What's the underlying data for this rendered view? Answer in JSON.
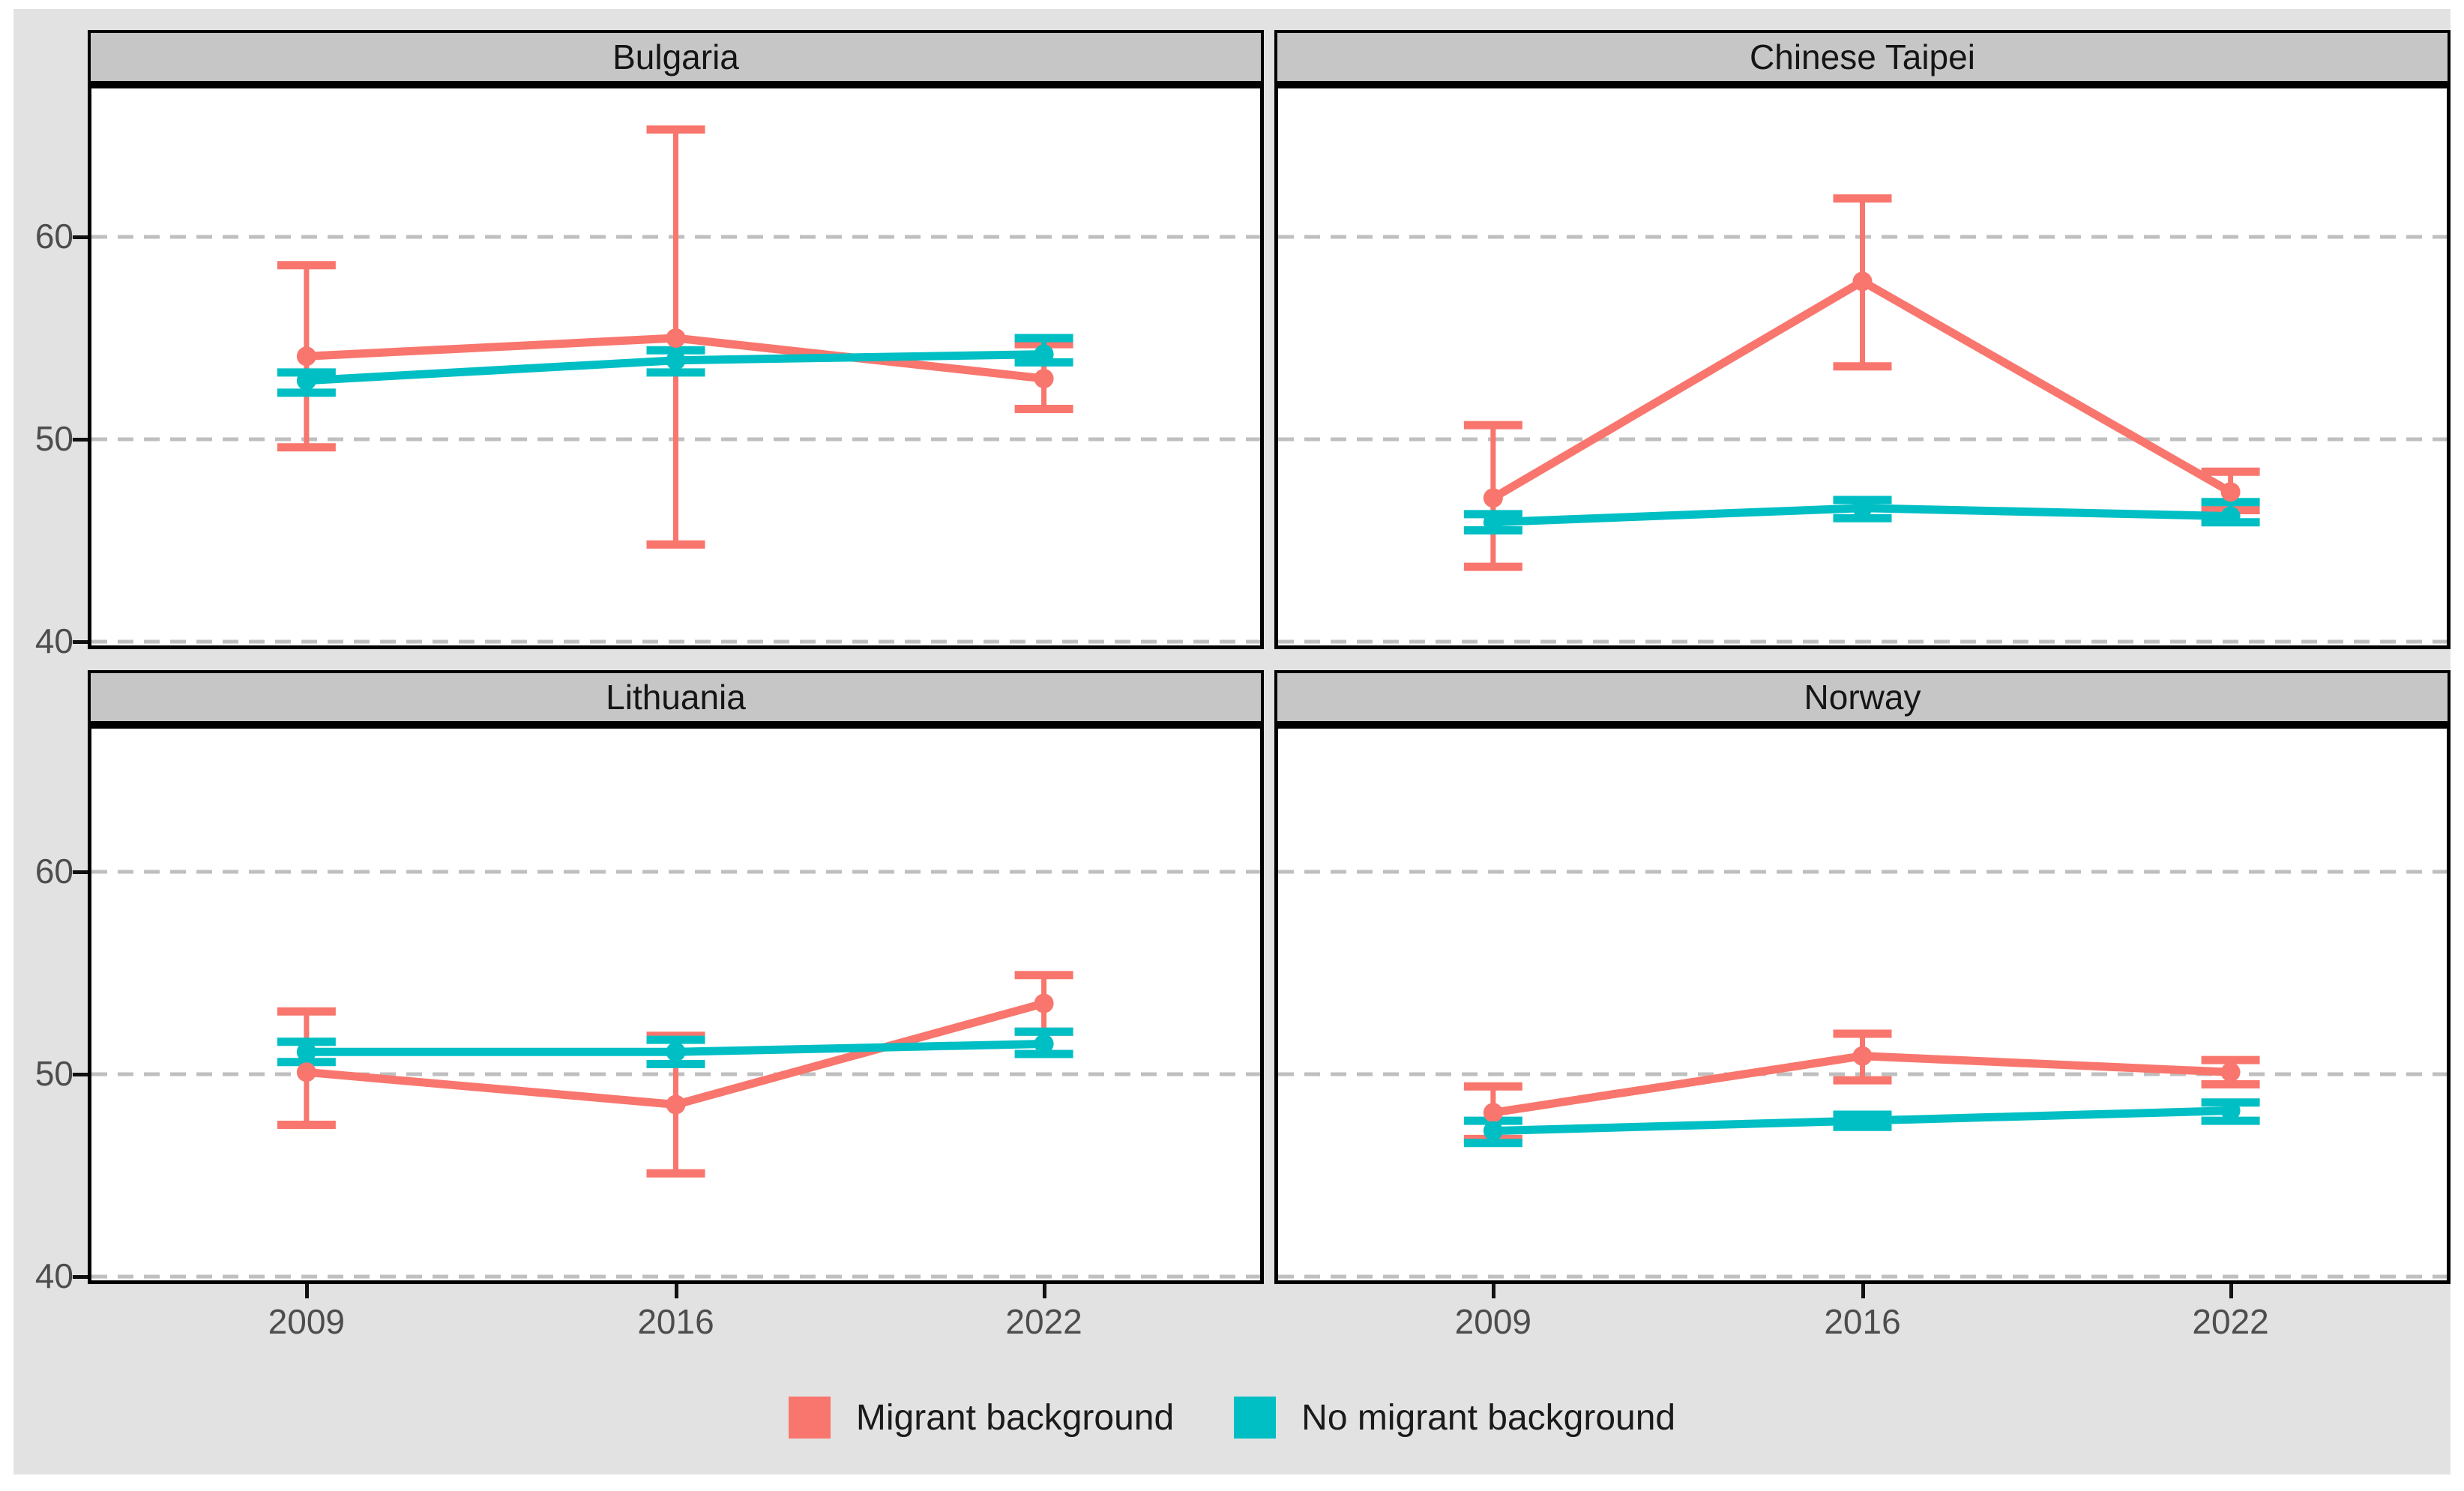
{
  "figure": {
    "outer_background": "#ffffff",
    "canvas_background": "#E2E2E2",
    "panel_background": "#ffffff",
    "strip_background": "#C6C6C6",
    "gridline_color": "#BFBFBF",
    "axis_text_color": "#4D4D4D",
    "strip_text_color": "#151515"
  },
  "legend": {
    "items": [
      {
        "label": "Migrant background",
        "color": "#F8766D"
      },
      {
        "label": "No migrant background",
        "color": "#00BFC4"
      }
    ]
  },
  "chart_data": {
    "type": "line",
    "subtype": "point-range with error bars, faceted 2x2",
    "x": [
      2009,
      2016,
      2022
    ],
    "x_tick_labels": [
      "2009",
      "2016",
      "2022"
    ],
    "yticks": [
      40,
      50,
      60
    ],
    "ytick_labels": [
      "40",
      "50",
      "60"
    ],
    "ylim": [
      39.7,
      67.1
    ],
    "grid": "horizontal dashed at yticks",
    "legend_position": "bottom",
    "series_colors": [
      "#F8766D",
      "#00BFC4"
    ],
    "series_names": [
      "Migrant background",
      "No migrant background"
    ],
    "facets": [
      {
        "title": "Bulgaria",
        "series": [
          {
            "name": "Migrant background",
            "values": [
              54.1,
              55.0,
              53.0
            ],
            "ci_low": [
              49.6,
              44.8,
              51.5
            ],
            "ci_high": [
              58.6,
              65.3,
              54.7
            ]
          },
          {
            "name": "No migrant background",
            "values": [
              52.9,
              53.9,
              54.2
            ],
            "ci_low": [
              52.3,
              53.3,
              53.8
            ],
            "ci_high": [
              53.3,
              54.4,
              55.0
            ]
          }
        ]
      },
      {
        "title": "Chinese Taipei",
        "series": [
          {
            "name": "Migrant background",
            "values": [
              47.1,
              57.8,
              47.4
            ],
            "ci_low": [
              43.7,
              53.6,
              46.5
            ],
            "ci_high": [
              50.7,
              61.9,
              48.4
            ]
          },
          {
            "name": "No migrant background",
            "values": [
              45.9,
              46.6,
              46.2
            ],
            "ci_low": [
              45.5,
              46.1,
              45.9
            ],
            "ci_high": [
              46.3,
              47.0,
              46.9
            ]
          }
        ]
      },
      {
        "title": "Lithuania",
        "series": [
          {
            "name": "Migrant background",
            "values": [
              50.1,
              48.5,
              53.5
            ],
            "ci_low": [
              47.5,
              45.1,
              52.1
            ],
            "ci_high": [
              53.1,
              51.9,
              54.9
            ]
          },
          {
            "name": "No migrant background",
            "values": [
              51.1,
              51.1,
              51.5
            ],
            "ci_low": [
              50.6,
              50.5,
              51.0
            ],
            "ci_high": [
              51.6,
              51.7,
              52.1
            ]
          }
        ]
      },
      {
        "title": "Norway",
        "series": [
          {
            "name": "Migrant background",
            "values": [
              48.1,
              50.9,
              50.1
            ],
            "ci_low": [
              46.8,
              49.7,
              49.5
            ],
            "ci_high": [
              49.4,
              52.0,
              50.7
            ]
          },
          {
            "name": "No migrant background",
            "values": [
              47.2,
              47.7,
              48.2
            ],
            "ci_low": [
              46.6,
              47.4,
              47.7
            ],
            "ci_high": [
              47.7,
              48.0,
              48.6
            ]
          }
        ]
      }
    ]
  }
}
